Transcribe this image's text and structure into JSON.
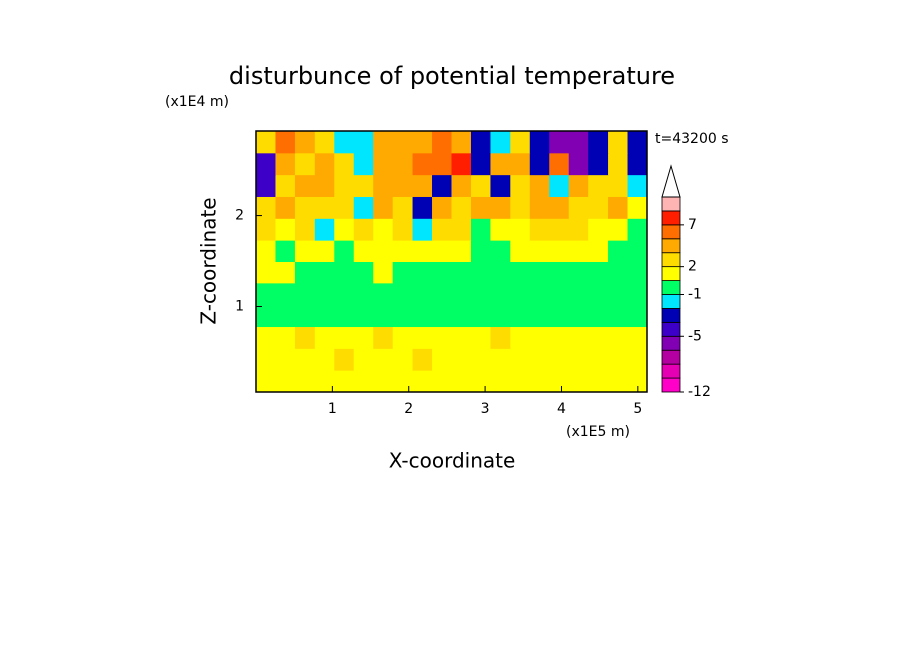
{
  "chart_data": {
    "type": "contourf",
    "title": "disturbunce of potential temperature",
    "xlabel": "X-coordinate",
    "ylabel": "Z-coordinate",
    "xunit": "(x1E5 m)",
    "yunit": "(x1E4 m)",
    "annotation": "t=43200 s",
    "xlim": [
      0,
      5.12
    ],
    "ylim": [
      0.06,
      2.93
    ],
    "xticks": [
      1,
      2,
      3,
      4,
      5
    ],
    "yticks": [
      1,
      2
    ],
    "x": [
      0.13,
      0.38,
      0.64,
      0.9,
      1.15,
      1.41,
      1.66,
      1.92,
      2.18,
      2.43,
      2.69,
      2.94,
      3.2,
      3.46,
      3.71,
      3.97,
      4.22,
      4.48,
      4.74,
      4.99
    ],
    "y": [
      0.18,
      0.42,
      0.66,
      0.9,
      1.14,
      1.38,
      1.61,
      1.85,
      2.09,
      2.33,
      2.57,
      2.81
    ],
    "z": [
      [
        1.5,
        1.2,
        1.5,
        1.5,
        1.5,
        1.5,
        1.5,
        1.5,
        1.5,
        1.5,
        1.5,
        1.5,
        1.5,
        1.5,
        1.5,
        1.5,
        1.5,
        1.5,
        1.5,
        1.5
      ],
      [
        1.5,
        1.5,
        1.5,
        1.5,
        2.2,
        1.5,
        1.5,
        1.5,
        2.2,
        1.5,
        1.5,
        1.5,
        1.5,
        1.5,
        1.5,
        1.5,
        1.5,
        1.5,
        1.5,
        1.5
      ],
      [
        1.5,
        1.5,
        2.2,
        1.5,
        1.5,
        1.5,
        2.2,
        1.5,
        1.5,
        1.5,
        1.5,
        1.5,
        2.2,
        1.5,
        1.5,
        1.5,
        1.5,
        1.5,
        1.5,
        1.5
      ],
      [
        0,
        0,
        0,
        0,
        0.5,
        0,
        0,
        0,
        0,
        0,
        0,
        0,
        0,
        0,
        0,
        0,
        0,
        0,
        0,
        0
      ],
      [
        0,
        0,
        0,
        0,
        0,
        0,
        0,
        0,
        0,
        0,
        0,
        0,
        0,
        0,
        0,
        0,
        0,
        0,
        0,
        0
      ],
      [
        1.5,
        1.5,
        0,
        0,
        0,
        0,
        1.5,
        0,
        0,
        0,
        0,
        0,
        0,
        0,
        0,
        0,
        0,
        0,
        0,
        0
      ],
      [
        1.5,
        0,
        1.5,
        1.5,
        0,
        1.5,
        1.5,
        1.5,
        1.5,
        1.5,
        1.5,
        0,
        0,
        1.5,
        1.5,
        1.5,
        1.5,
        1.5,
        0,
        0
      ],
      [
        2.5,
        1.5,
        2.5,
        -1.5,
        1.5,
        2.5,
        1.5,
        2.5,
        -1.5,
        2.5,
        2.5,
        0,
        1.5,
        1.5,
        2.5,
        2.5,
        2.5,
        1.5,
        1.5,
        0
      ],
      [
        2.5,
        4,
        2.5,
        2.5,
        2.5,
        -1.5,
        4,
        2.5,
        -3,
        4,
        2.5,
        4,
        4,
        2.5,
        4,
        4,
        2.5,
        2.5,
        4,
        1.5
      ],
      [
        -4.5,
        2.5,
        4,
        4,
        2.5,
        2.5,
        4,
        4,
        4,
        -3,
        4,
        2.5,
        -3,
        2.5,
        4,
        -1.5,
        4,
        2.5,
        2.5,
        -1.5
      ],
      [
        -4.5,
        4,
        2.5,
        4,
        2.5,
        -1.5,
        4,
        4,
        6,
        6,
        8,
        -3,
        4,
        4,
        -3,
        6,
        -5.5,
        -3,
        2.5,
        -3
      ],
      [
        2.5,
        6,
        4,
        2.5,
        -1.5,
        -1.5,
        4,
        4,
        4,
        6,
        4,
        -3,
        -1.5,
        2.5,
        -3,
        -5.5,
        -5.5,
        -3,
        2.5,
        -3
      ]
    ],
    "colorbar": {
      "levels": [
        -12,
        -10,
        -8,
        -6,
        -5,
        -4,
        -2,
        -1,
        1,
        2,
        3,
        5,
        7,
        9,
        11
      ],
      "colors": [
        "#ff00c8",
        "#e600b4",
        "#b400a0",
        "#8200b4",
        "#3c00c8",
        "#0000b4",
        "#00e6ff",
        "#00ff64",
        "#ffff00",
        "#ffdc00",
        "#ffaa00",
        "#ff6e00",
        "#ff1e00",
        "#ffb4b4"
      ],
      "ticks": [
        7,
        2,
        -1,
        -5,
        -12
      ]
    }
  }
}
